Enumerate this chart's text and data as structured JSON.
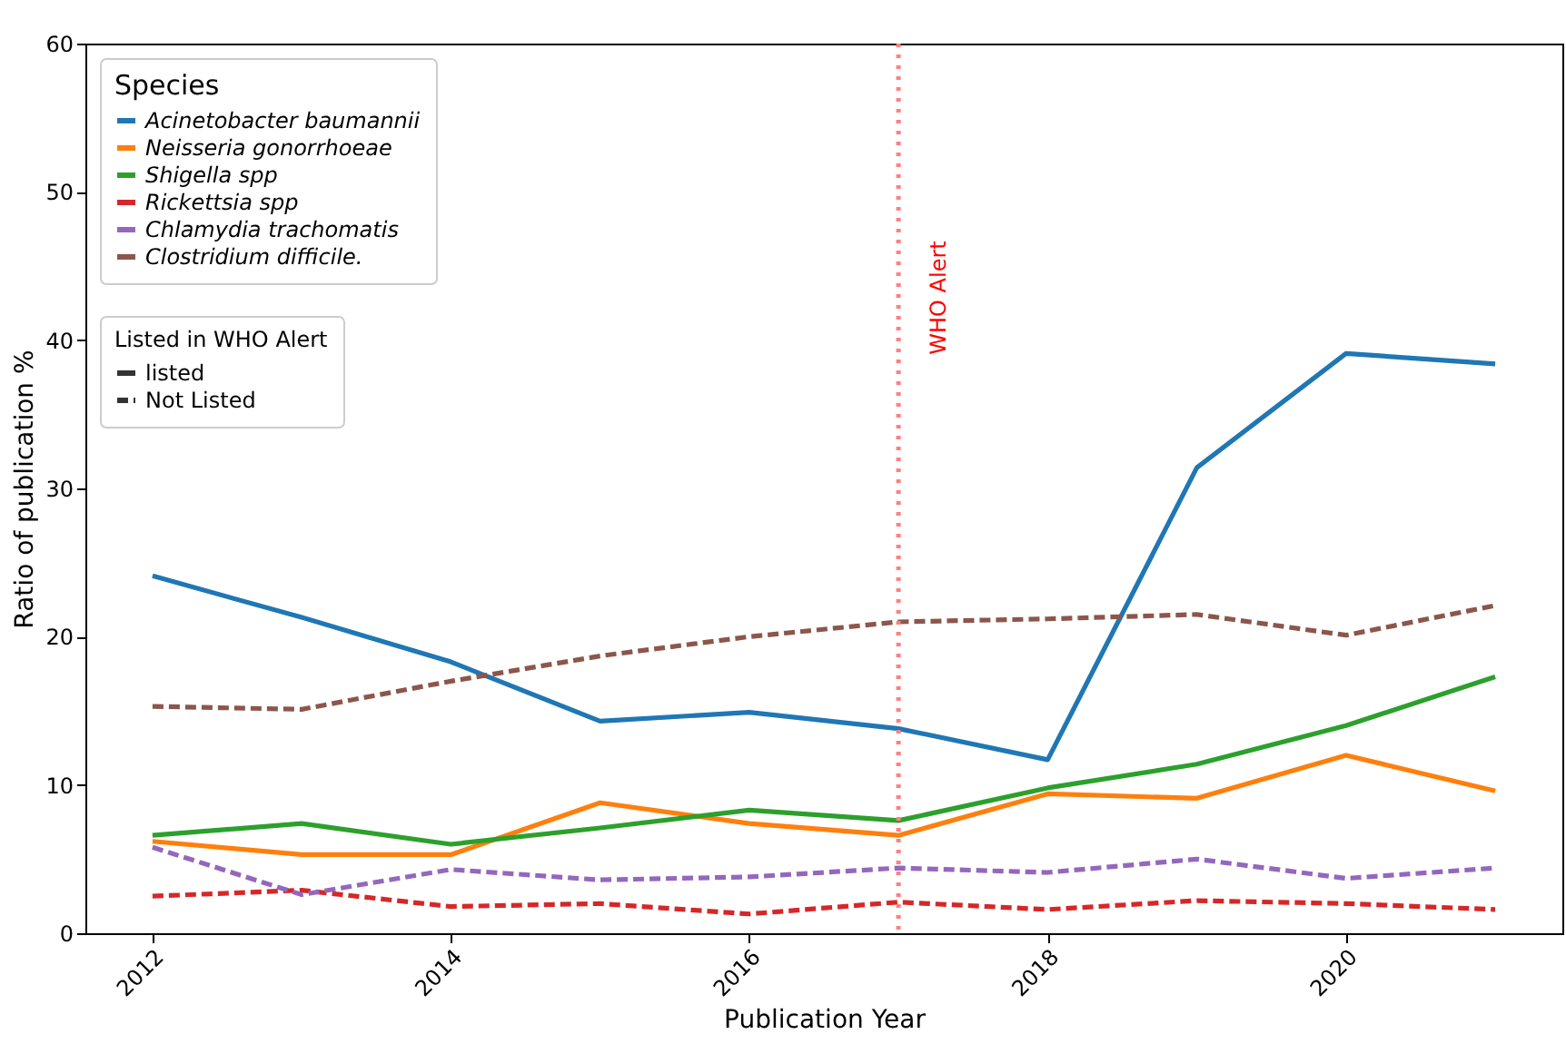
{
  "chart_data": {
    "type": "line",
    "xlabel": "Publication Year",
    "ylabel": "Ratio of publication %",
    "legend_title": "Species",
    "legend": "top left",
    "x": [
      2012,
      2013,
      2014,
      2015,
      2016,
      2017,
      2018,
      2019,
      2020,
      2021
    ],
    "xlim": [
      2011.55,
      2021.45
    ],
    "xticks": [
      2012,
      2014,
      2016,
      2018,
      2020
    ],
    "ylim": [
      0,
      60
    ],
    "yticks": [
      0,
      10,
      20,
      30,
      40,
      50,
      60
    ],
    "grid": false,
    "annotations": [
      "Listed in WHO Alert"
    ],
    "ref_lines": [
      {
        "axis": "x",
        "value": 2017,
        "label": "WHO Alert",
        "color": "#ff7f7f",
        "line_style": "dotted"
      }
    ],
    "series": [
      {
        "name": "Acinetobacter baumannii",
        "color": "#1f77b4",
        "line_style": "solid",
        "values": [
          24.1,
          21.3,
          18.3,
          14.3,
          14.9,
          13.8,
          11.7,
          31.4,
          39.1,
          38.4
        ]
      },
      {
        "name": "Neisseria gonorrhoeae",
        "color": "#ff7f0e",
        "line_style": "solid",
        "values": [
          6.2,
          5.3,
          5.3,
          8.8,
          7.4,
          6.6,
          9.4,
          9.1,
          12.0,
          9.6
        ]
      },
      {
        "name": "Shigella spp",
        "color": "#2ca02c",
        "line_style": "solid",
        "values": [
          6.6,
          7.4,
          6.0,
          7.1,
          8.3,
          7.6,
          9.8,
          11.4,
          14.0,
          17.3
        ]
      },
      {
        "name": "Rickettsia spp",
        "color": "#d62728",
        "line_style": "dashed",
        "values": [
          2.5,
          2.9,
          1.8,
          2.0,
          1.3,
          2.1,
          1.6,
          2.2,
          2.0,
          1.6
        ]
      },
      {
        "name": "Chlamydia trachomatis",
        "color": "#9467bd",
        "line_style": "dashed",
        "values": [
          5.8,
          2.6,
          4.3,
          3.6,
          3.8,
          4.4,
          4.1,
          5.0,
          3.7,
          4.4
        ]
      },
      {
        "name": "Clostridium difficile.",
        "color": "#8c564b",
        "line_style": "dashed",
        "values": [
          15.3,
          15.1,
          17.0,
          18.7,
          20.0,
          21.0,
          21.2,
          21.5,
          20.1,
          22.1
        ]
      },
      {
        "name": "listed",
        "color": "#333333",
        "line_style": "solid",
        "values": [
          null,
          null,
          null,
          null,
          null,
          null,
          null,
          null,
          null,
          null
        ]
      },
      {
        "name": "Not Listed",
        "color": "#333333",
        "line_style": "dashed",
        "values": [
          null,
          null,
          null,
          null,
          null,
          null,
          null,
          null,
          null,
          null
        ]
      }
    ]
  }
}
